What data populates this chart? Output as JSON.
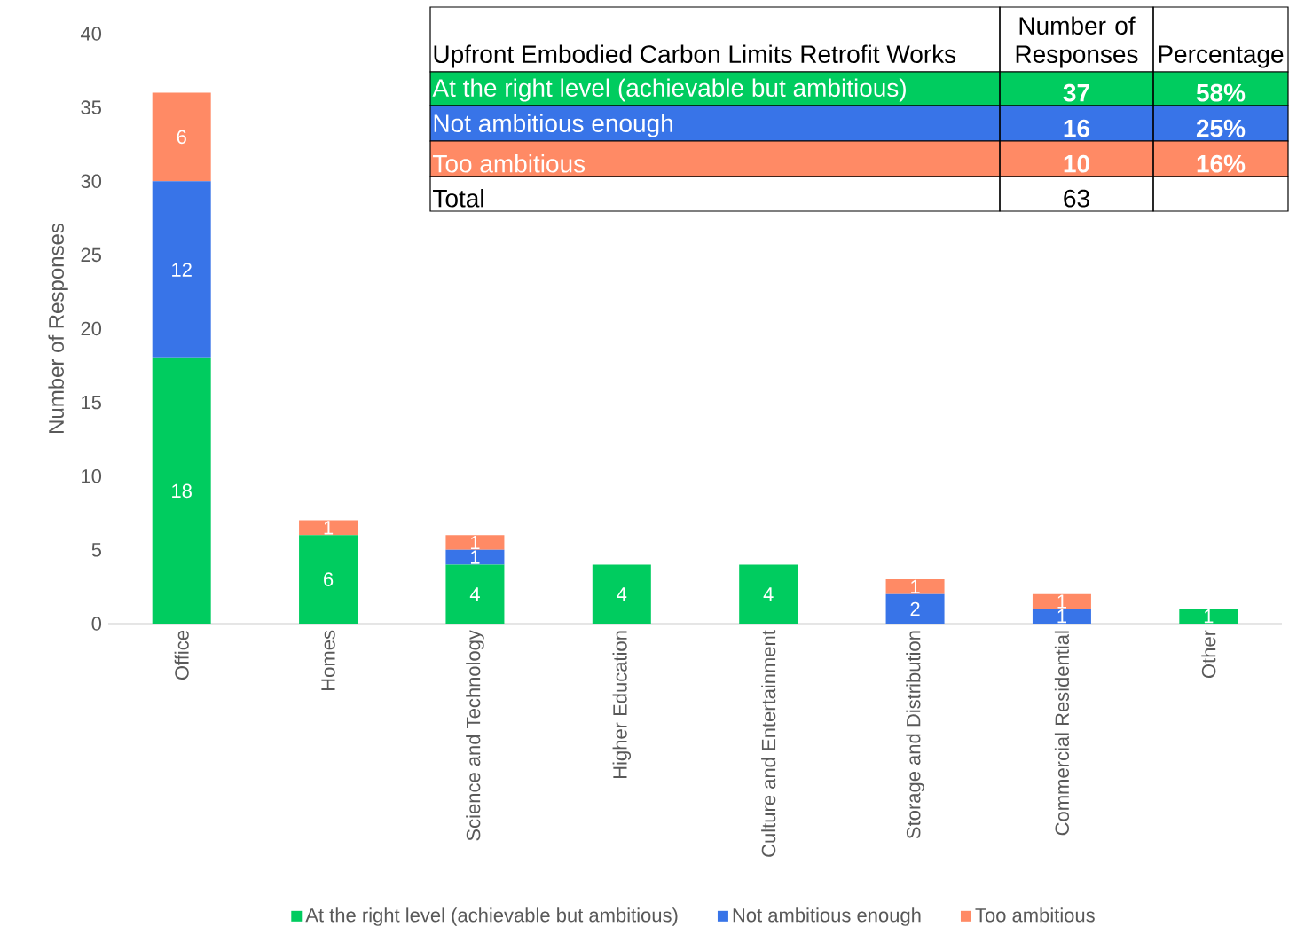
{
  "chart_data": {
    "type": "bar",
    "stacked": true,
    "ylabel": "Number of Responses",
    "categories": [
      "Office",
      "Homes",
      "Science and Technology",
      "Higher Education",
      "Culture and Entertainment",
      "Storage and Distribution",
      "Commercial Residential",
      "Other"
    ],
    "series": [
      {
        "name": "At the right level (achievable but ambitious)",
        "color": "#00cc5f",
        "values": [
          18,
          6,
          4,
          4,
          4,
          0,
          0,
          1
        ],
        "value_labels": [
          "18",
          "6",
          "4",
          "4",
          "4",
          null,
          null,
          "1"
        ]
      },
      {
        "name": "Not ambitious enough",
        "color": "#3874e8",
        "values": [
          12,
          0,
          1,
          0,
          0,
          2,
          1,
          0
        ],
        "value_labels": [
          "12",
          null,
          "1",
          null,
          null,
          "2",
          "1",
          null
        ]
      },
      {
        "name": "Too ambitious",
        "color": "#ff8a65",
        "values": [
          6,
          1,
          1,
          0,
          0,
          1,
          1,
          0
        ],
        "value_labels": [
          "6",
          "1",
          "1",
          null,
          null,
          "1",
          "1",
          null
        ]
      }
    ],
    "ylim": [
      0,
      40
    ],
    "yticks": [
      0,
      5,
      10,
      15,
      20,
      25,
      30,
      35,
      40
    ],
    "grid": false,
    "legend": "bottom",
    "annotations": [
      "Upfront Embodied Carbon Limits Retrofit Works",
      "Number of Responses",
      "Percentage",
      "At the right level (achievable but ambitious)",
      "37",
      "58%",
      "Not ambitious enough",
      "16",
      "25%",
      "Too ambitious",
      "10",
      "16%",
      "Total",
      "63"
    ]
  }
}
